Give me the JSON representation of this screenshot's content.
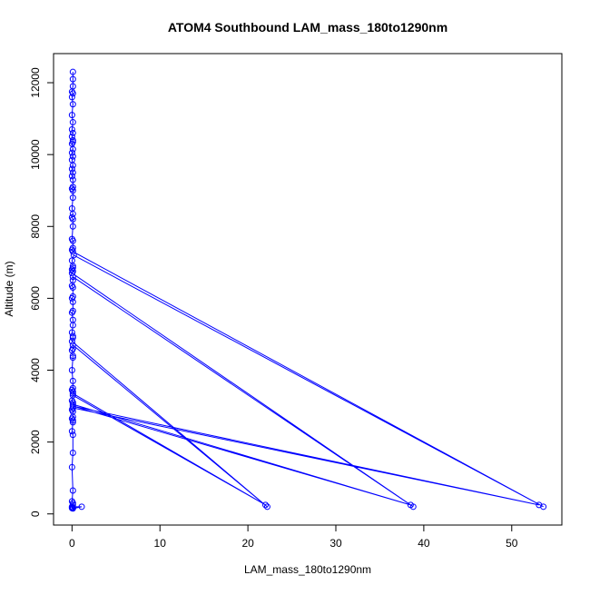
{
  "chart_data": {
    "type": "line",
    "title": "ATOM4 Southbound LAM_mass_180to1290nm",
    "xlabel": "LAM_mass_180to1290nm",
    "ylabel": "Altitude (m)",
    "xlim": [
      -2.1,
      55.7
    ],
    "ylim": [
      -310,
      12810
    ],
    "x_ticks": [
      0,
      10,
      20,
      30,
      40,
      50
    ],
    "y_ticks": [
      0,
      2000,
      4000,
      6000,
      8000,
      10000,
      12000
    ],
    "grid": false,
    "series_color": "#0000ff",
    "series": [
      {
        "points": [
          [
            0.1,
            12300
          ],
          [
            0.1,
            12100
          ],
          [
            0.1,
            11900
          ],
          [
            0.0,
            11750
          ],
          [
            0.1,
            11700
          ],
          [
            0.0,
            11600
          ],
          [
            0.1,
            11400
          ],
          [
            0.0,
            11100
          ],
          [
            0.1,
            10900
          ],
          [
            0.0,
            10700
          ],
          [
            0.1,
            10600
          ],
          [
            0.0,
            10500
          ],
          [
            0.1,
            10400
          ],
          [
            0.1,
            10350
          ],
          [
            0.0,
            10300
          ],
          [
            0.1,
            10150
          ],
          [
            0.0,
            10050
          ],
          [
            0.1,
            9950
          ],
          [
            0.0,
            9850
          ],
          [
            0.1,
            9700
          ],
          [
            0.0,
            9600
          ],
          [
            0.1,
            9500
          ],
          [
            0.0,
            9400
          ],
          [
            0.1,
            9300
          ],
          [
            0.1,
            9100
          ],
          [
            0.0,
            9050
          ],
          [
            0.1,
            9000
          ],
          [
            0.1,
            8800
          ],
          [
            0.0,
            8500
          ],
          [
            0.1,
            8350
          ],
          [
            0.0,
            8250
          ],
          [
            0.1,
            8200
          ],
          [
            0.1,
            8000
          ],
          [
            0.0,
            7650
          ],
          [
            0.1,
            7600
          ],
          [
            0.1,
            7400
          ],
          [
            0.0,
            7350
          ],
          [
            0.1,
            7300
          ],
          [
            53.6,
            200
          ],
          [
            0.2,
            7200
          ],
          [
            0.0,
            7050
          ],
          [
            0.1,
            6900
          ],
          [
            0.1,
            6850
          ],
          [
            0.0,
            6800
          ],
          [
            0.1,
            6750
          ],
          [
            0.0,
            6700
          ],
          [
            38.8,
            200
          ],
          [
            0.1,
            6600
          ],
          [
            0.1,
            6500
          ],
          [
            0.0,
            6350
          ],
          [
            0.1,
            6300
          ],
          [
            0.1,
            6050
          ],
          [
            0.0,
            6000
          ],
          [
            0.1,
            5900
          ],
          [
            0.1,
            5650
          ],
          [
            0.0,
            5600
          ],
          [
            0.1,
            5400
          ],
          [
            0.1,
            5250
          ],
          [
            0.0,
            5050
          ],
          [
            0.1,
            4950
          ],
          [
            0.1,
            4900
          ],
          [
            0.0,
            4800
          ],
          [
            22.2,
            200
          ],
          [
            0.1,
            4700
          ],
          [
            0.1,
            4600
          ],
          [
            0.0,
            4550
          ],
          [
            0.1,
            4400
          ],
          [
            0.1,
            4350
          ],
          [
            0.0,
            4000
          ],
          [
            0.1,
            3700
          ],
          [
            0.1,
            3500
          ],
          [
            0.0,
            3450
          ],
          [
            0.1,
            3400
          ],
          [
            0.1,
            3350
          ],
          [
            22.0,
            250
          ],
          [
            0.1,
            3300
          ],
          [
            0.0,
            3150
          ],
          [
            0.1,
            3100
          ],
          [
            0.1,
            3050
          ],
          [
            38.5,
            250
          ],
          [
            0.1,
            3000
          ],
          [
            53.1,
            250
          ],
          [
            0.1,
            2950
          ],
          [
            0.0,
            2900
          ],
          [
            0.1,
            2850
          ],
          [
            0.1,
            2700
          ],
          [
            0.0,
            2650
          ],
          [
            0.1,
            2600
          ],
          [
            0.1,
            2550
          ],
          [
            0.0,
            2300
          ],
          [
            0.1,
            2200
          ],
          [
            0.1,
            1700
          ],
          [
            0.0,
            1300
          ],
          [
            0.1,
            650
          ],
          [
            0.0,
            350
          ],
          [
            0.1,
            300
          ],
          [
            0.1,
            250
          ],
          [
            0.0,
            200
          ],
          [
            1.1,
            200
          ],
          [
            0.1,
            150
          ],
          [
            0.0,
            160
          ],
          [
            0.1,
            170
          ],
          [
            0.0,
            180
          ]
        ]
      }
    ]
  }
}
